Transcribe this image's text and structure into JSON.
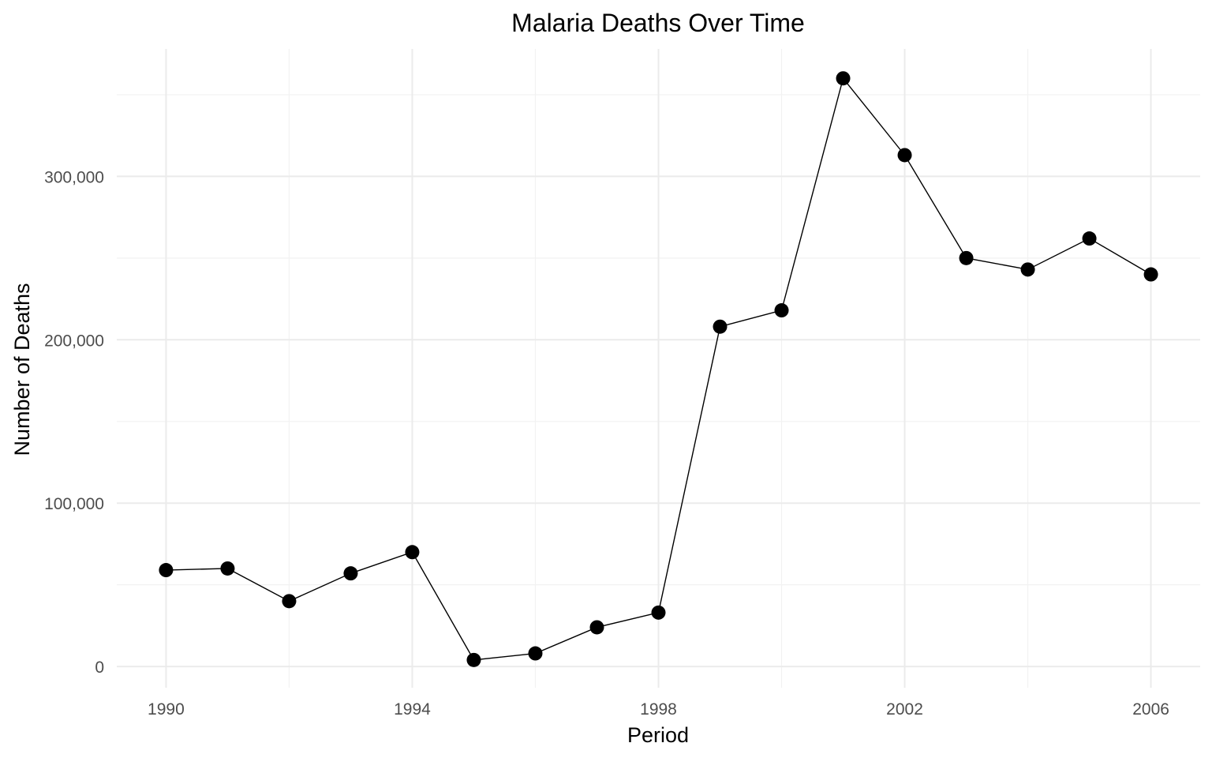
{
  "chart_data": {
    "type": "line",
    "title": "Malaria Deaths Over Time",
    "xlabel": "Period",
    "ylabel": "Number of Deaths",
    "x": [
      1990,
      1991,
      1992,
      1993,
      1994,
      1995,
      1996,
      1997,
      1998,
      1999,
      2000,
      2001,
      2002,
      2003,
      2004,
      2005,
      2006
    ],
    "series": [
      {
        "values": [
          59000,
          60000,
          40000,
          57000,
          70000,
          4000,
          8000,
          24000,
          33000,
          208000,
          218000,
          360000,
          313000,
          250000,
          243000,
          262000,
          240000
        ]
      }
    ],
    "x_ticks": [
      1990,
      1994,
      1998,
      2002,
      2006
    ],
    "x_tick_labels": [
      "1990",
      "1994",
      "1998",
      "2002",
      "2006"
    ],
    "y_ticks": [
      0,
      100000,
      200000,
      300000
    ],
    "y_tick_labels": [
      "0",
      "100,000",
      "200,000",
      "300,000"
    ],
    "xlim": [
      1989.2,
      2006.8
    ],
    "ylim": [
      -13000,
      378000
    ],
    "grid": true,
    "legend": "none",
    "colors": {
      "line": "#000000",
      "points": "#000000",
      "grid_major": "#ebebeb",
      "grid_minor": "#f2f2f2",
      "tick_text": "#4d4d4d"
    }
  }
}
